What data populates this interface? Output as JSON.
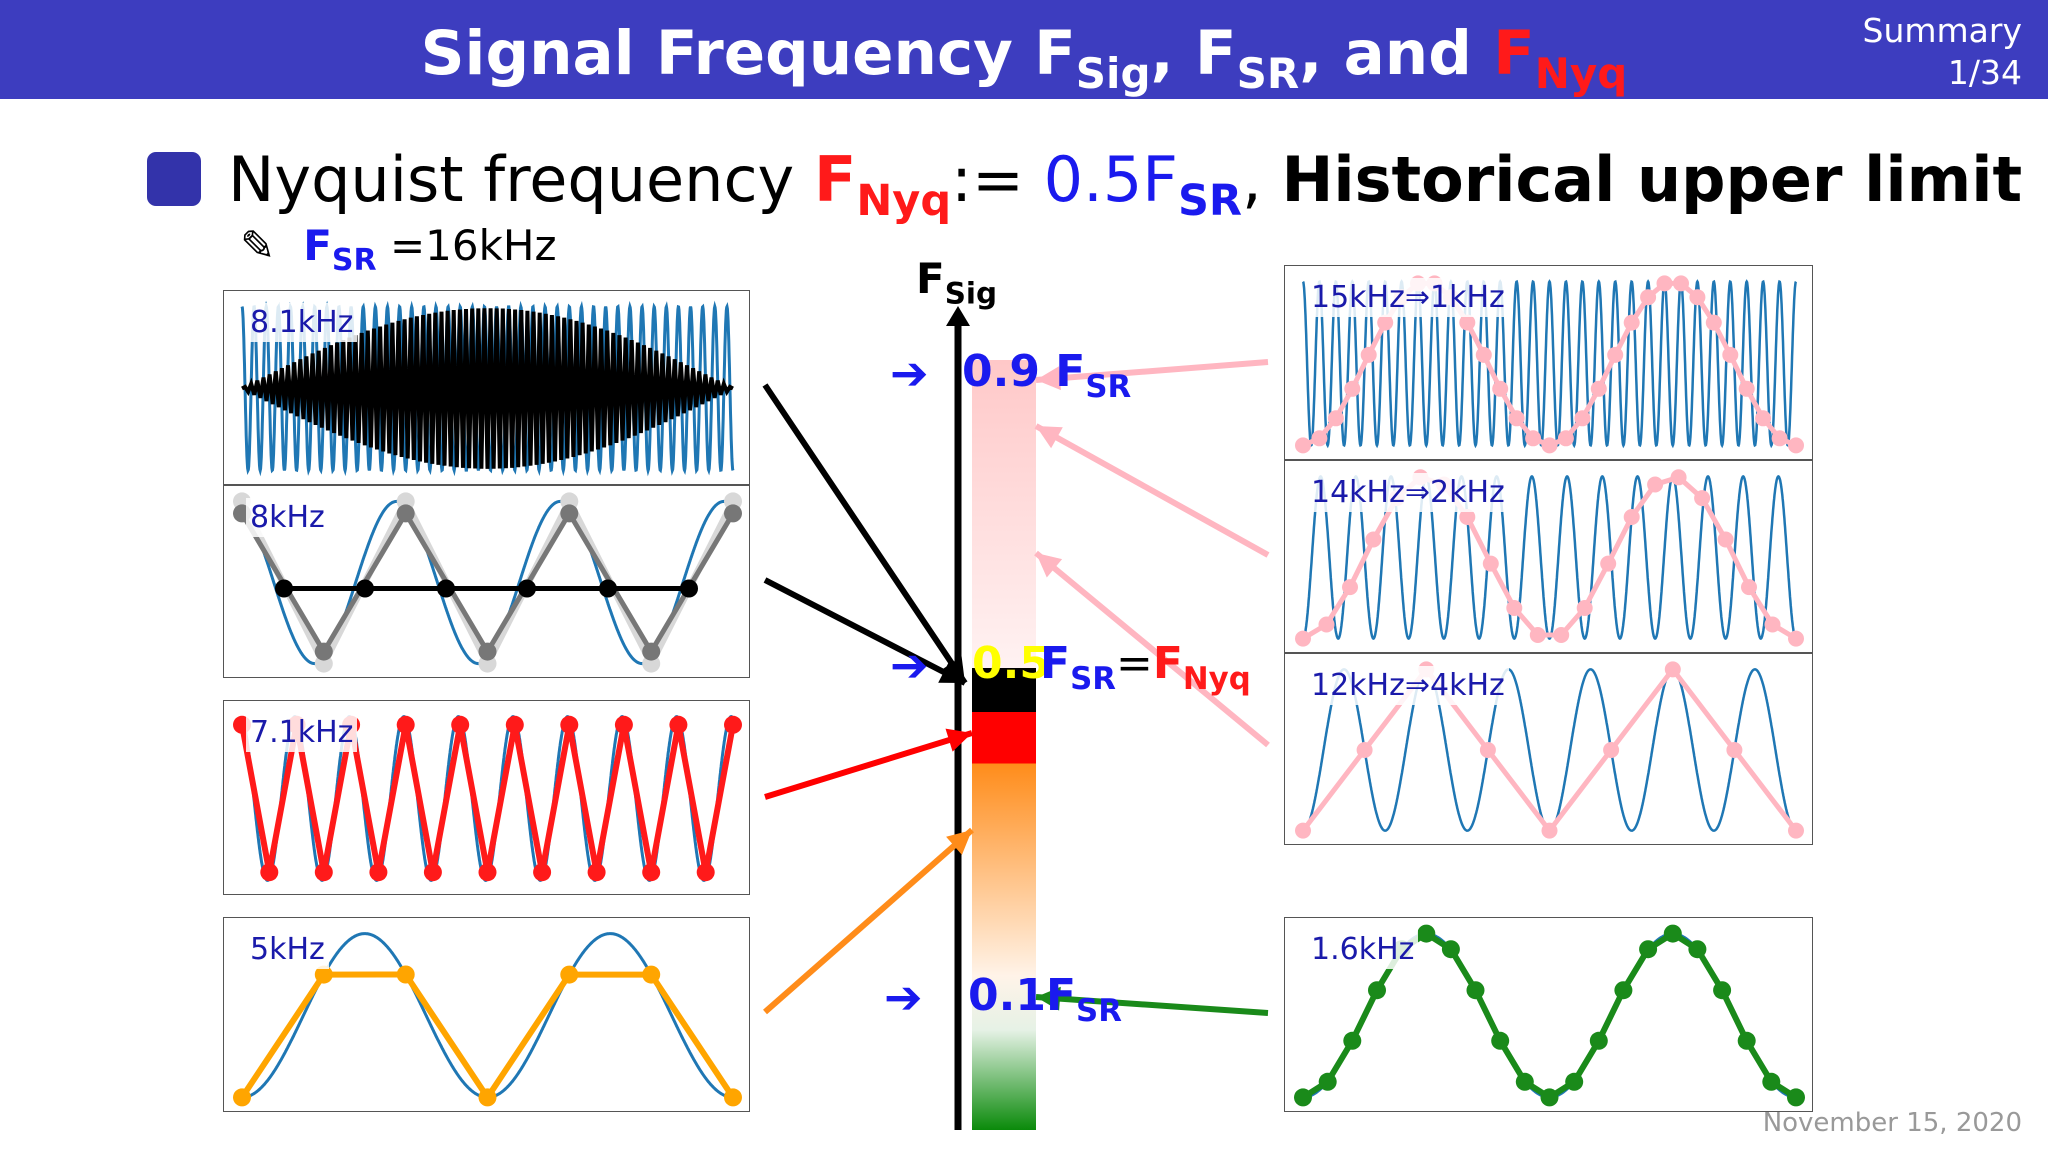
{
  "header": {
    "title_prefix": "Signal Frequency F",
    "title_sub1": "Sig",
    "title_mid1": ", F",
    "title_sub2": "SR",
    "title_mid2": ", and ",
    "title_fnyq": "F",
    "title_sub3": "Nyq",
    "section": "Summary",
    "page": "1/34"
  },
  "bullet": {
    "text_1": "Nyquist frequency ",
    "fnyq_main": "F",
    "fnyq_sub": "Nyq",
    "assign": ":= ",
    "half_main": "0.5F",
    "half_sub": "SR",
    "comma": ", ",
    "bold_tail": "Historical upper limit"
  },
  "note": {
    "pencil": "✎",
    "fsr_main": "F",
    "fsr_sub": "SR",
    "value": " =16kHz"
  },
  "axis": {
    "label_main": "F",
    "label_sub": "Sig",
    "mark_09_value": "0.9",
    "mark_09_main": " F",
    "mark_09_sub": "SR",
    "mark_05_value": "0.5",
    "mark_05_main": " F",
    "mark_05_sub": "SR",
    "mark_05_eq": "=",
    "mark_05_nyq_main": "F",
    "mark_05_nyq_sub": "Nyq",
    "mark_01_value": "0.1",
    "mark_01_main": "F",
    "mark_01_sub": "SR",
    "arrow_glyph": "➔"
  },
  "panels": {
    "p81": "8.1kHz",
    "p8": "8kHz",
    "p71": "7.1kHz",
    "p5": "5kHz",
    "p15": "15kHz⇒1kHz",
    "p14": "14kHz⇒2kHz",
    "p12": "12kHz⇒4kHz",
    "p16": "1.6kHz"
  },
  "colors": {
    "title_bar": "#3d3dbf",
    "wave": "#1f77b4",
    "nyquist_red": "#ff1a1a",
    "accent_blue": "#1a1aee",
    "alias_pink": "#ffb6c1",
    "below_orange": "#ffa500",
    "low_green": "#1a8a1a"
  },
  "footer": {
    "date": "November 15, 2020"
  }
}
